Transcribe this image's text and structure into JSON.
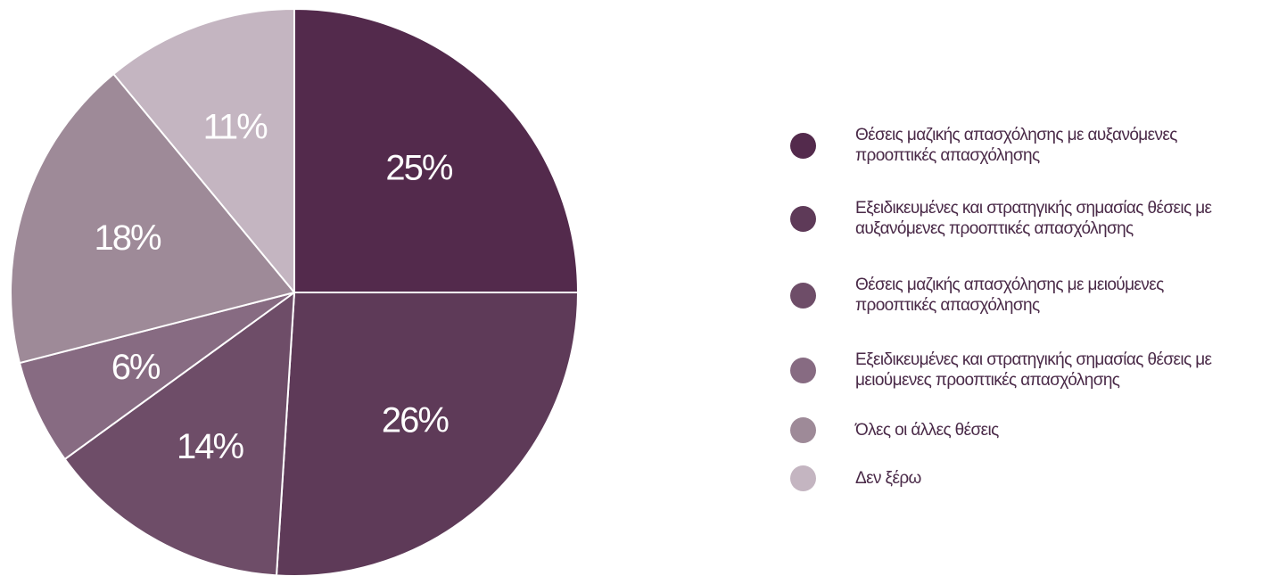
{
  "chart_data": {
    "type": "pie",
    "slices": [
      {
        "label": "Θέσεις μαζικής απασχόλησης με αυξανόμενες προοπτικές απασχόλησης",
        "value": 25,
        "display": "25%",
        "color": "#532a4c"
      },
      {
        "label": "Εξειδικευμένες και στρατηγικής σημασίας θέσεις με αυξανόμενες προοπτικές απασχόλησης",
        "value": 26,
        "display": "26%",
        "color": "#5e3a58"
      },
      {
        "label": "Θέσεις μαζικής απασχόλησης με μειούμενες προοπτικές απασχόλησης",
        "value": 14,
        "display": "14%",
        "color": "#6e4d68"
      },
      {
        "label": "Εξειδικευμένες και στρατηγικής σημασίας θέσεις με μειούμενες προοπτικές απασχόλησης",
        "value": 6,
        "display": "6%",
        "color": "#876b82"
      },
      {
        "label": "Όλες οι άλλες θέσεις",
        "value": 18,
        "display": "18%",
        "color": "#9e8a98"
      },
      {
        "label": "Δεν ξέρω",
        "value": 11,
        "display": "11%",
        "color": "#c4b5c1"
      }
    ],
    "legend_position": "right"
  }
}
